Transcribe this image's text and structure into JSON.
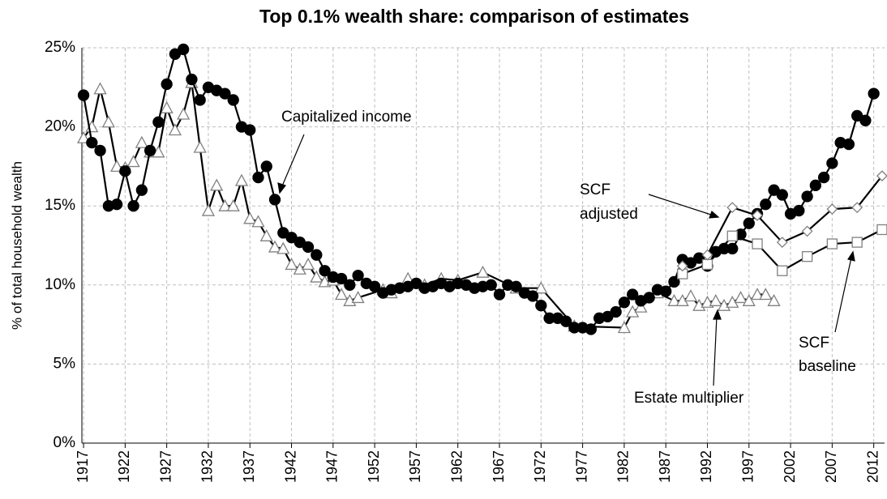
{
  "chart_data": {
    "type": "line",
    "title": "Top 0.1% wealth share: comparison of estimates",
    "y_label": "% of total household wealth",
    "xlim": [
      1916.8,
      2013.3
    ],
    "xticks": [
      1917,
      1922,
      1927,
      1932,
      1937,
      1942,
      1947,
      1952,
      1957,
      1962,
      1967,
      1972,
      1977,
      1982,
      1987,
      1992,
      1997,
      2002,
      2007,
      2012
    ],
    "ylim": [
      0,
      25
    ],
    "yticks": [
      {
        "value": 0,
        "label": "0%"
      },
      {
        "value": 5,
        "label": "5%"
      },
      {
        "value": 10,
        "label": "10%"
      },
      {
        "value": 15,
        "label": "15%"
      },
      {
        "value": 20,
        "label": "20%"
      },
      {
        "value": 25,
        "label": "25%"
      }
    ],
    "grid": true,
    "annotations": [
      {
        "lines": [
          "Capitalized income"
        ]
      },
      {
        "lines": [
          "SCF",
          "adjusted"
        ]
      },
      {
        "lines": [
          "SCF",
          "baseline"
        ]
      },
      {
        "lines": [
          "Estate multiplier"
        ]
      }
    ],
    "series": [
      {
        "name": "Estate multiplier",
        "color": "#000000",
        "marker": "triangle",
        "marker_fill": "#ffffff",
        "marker_stroke": "#808080",
        "x": [
          1917,
          1918,
          1919,
          1920,
          1921,
          1922,
          1923,
          1924,
          1925,
          1926,
          1927,
          1928,
          1929,
          1930,
          1931,
          1932,
          1933,
          1934,
          1935,
          1936,
          1937,
          1938,
          1939,
          1940,
          1941,
          1942,
          1943,
          1944,
          1945,
          1946,
          1947,
          1948,
          1949,
          1950,
          1953,
          1954,
          1956,
          1958,
          1960,
          1962,
          1965,
          1969,
          1972,
          1976,
          1982,
          1983,
          1984,
          1986,
          1988,
          1989,
          1990,
          1991,
          1992,
          1993,
          1994,
          1995,
          1996,
          1997,
          1998,
          1999,
          2000
        ],
        "values": [
          19.3,
          20,
          22.4,
          20.3,
          17.5,
          17.4,
          17.8,
          19,
          18.4,
          18.4,
          21.2,
          19.8,
          20.8,
          22.8,
          18.7,
          14.7,
          16.3,
          15,
          15,
          16.6,
          14.2,
          14,
          13.1,
          12.4,
          12.3,
          11.3,
          11,
          11.3,
          10.5,
          10.2,
          10.3,
          9.4,
          9,
          9.2,
          9.7,
          9.5,
          10.4,
          10,
          10.4,
          10.3,
          10.8,
          9.8,
          9.8,
          7.4,
          7.3,
          8.3,
          8.6,
          9.5,
          9.0,
          9.0,
          9.3,
          8.7,
          8.9,
          9.0,
          8.7,
          8.9,
          9.2,
          9.0,
          9.4,
          9.4,
          9.0
        ]
      },
      {
        "name": "Capitalized income",
        "color": "#000000",
        "marker": "circle",
        "marker_fill": "#000000",
        "marker_stroke": "#000000",
        "x": [
          1917,
          1918,
          1919,
          1920,
          1921,
          1922,
          1923,
          1924,
          1925,
          1926,
          1927,
          1928,
          1929,
          1930,
          1931,
          1932,
          1933,
          1934,
          1935,
          1936,
          1937,
          1938,
          1939,
          1940,
          1941,
          1942,
          1943,
          1944,
          1945,
          1946,
          1947,
          1948,
          1949,
          1950,
          1951,
          1952,
          1953,
          1954,
          1955,
          1956,
          1957,
          1958,
          1959,
          1960,
          1961,
          1962,
          1963,
          1964,
          1965,
          1966,
          1967,
          1968,
          1969,
          1970,
          1971,
          1972,
          1973,
          1974,
          1975,
          1976,
          1977,
          1978,
          1979,
          1980,
          1981,
          1982,
          1983,
          1984,
          1985,
          1986,
          1987,
          1988,
          1989,
          1990,
          1991,
          1992,
          1993,
          1994,
          1995,
          1996,
          1997,
          1998,
          1999,
          2000,
          2001,
          2002,
          2003,
          2004,
          2005,
          2006,
          2007,
          2008,
          2009,
          2010,
          2011,
          2012
        ],
        "values": [
          22,
          19,
          18.5,
          15,
          15.1,
          17.2,
          15,
          16,
          18.5,
          20.3,
          22.7,
          24.6,
          24.9,
          23,
          21.7,
          22.5,
          22.3,
          22.1,
          21.7,
          20,
          19.8,
          16.8,
          17.5,
          15.4,
          13.3,
          13,
          12.7,
          12.4,
          11.9,
          10.9,
          10.5,
          10.4,
          10,
          10.6,
          10.1,
          9.9,
          9.5,
          9.7,
          9.8,
          9.9,
          10.1,
          9.8,
          9.9,
          10.1,
          9.9,
          10.1,
          10,
          9.8,
          9.9,
          10,
          9.4,
          10,
          9.9,
          9.5,
          9.3,
          8.7,
          7.9,
          7.9,
          7.7,
          7.3,
          7.3,
          7.2,
          7.9,
          8,
          8.3,
          8.9,
          9.4,
          9,
          9.2,
          9.7,
          9.6,
          10.2,
          11.6,
          11.4,
          11.7,
          11.2,
          12.1,
          12.3,
          12.3,
          13.2,
          13.9,
          14.5,
          15.1,
          16,
          15.7,
          14.5,
          14.7,
          15.6,
          16.3,
          16.8,
          17.7,
          19,
          18.9,
          20.7,
          20.4,
          22.1
        ]
      },
      {
        "name": "SCF baseline",
        "color": "#000000",
        "marker": "square",
        "marker_fill": "#ffffff",
        "marker_stroke": "#808080",
        "x": [
          1989,
          1992,
          1995,
          1998,
          2001,
          2004,
          2007,
          2010,
          2013
        ],
        "values": [
          10.7,
          11.3,
          13.1,
          12.6,
          10.9,
          11.8,
          12.6,
          12.7,
          13.5
        ]
      },
      {
        "name": "SCF adjusted",
        "color": "#000000",
        "marker": "diamond",
        "marker_fill": "#ffffff",
        "marker_stroke": "#808080",
        "x": [
          1989,
          1992,
          1995,
          1998,
          2001,
          2004,
          2007,
          2010,
          2013
        ],
        "values": [
          11.2,
          11.9,
          14.9,
          14.4,
          12.7,
          13.4,
          14.8,
          14.9,
          16.9
        ]
      }
    ]
  }
}
